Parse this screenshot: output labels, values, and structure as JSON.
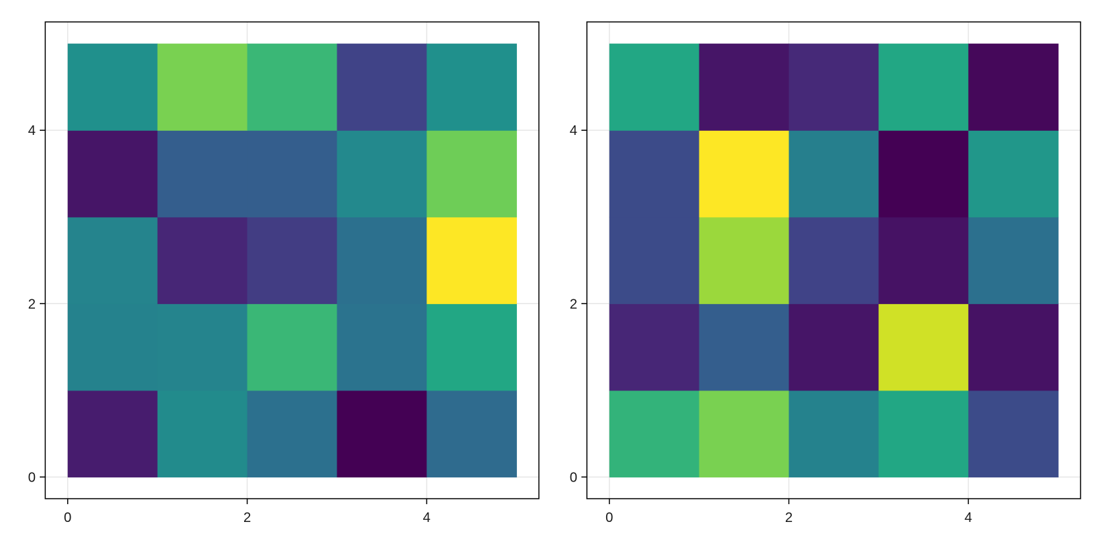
{
  "chart_data": [
    {
      "type": "heatmap",
      "title": "",
      "xlabel": "",
      "ylabel": "",
      "x_edges": [
        0,
        1,
        2,
        3,
        4,
        5
      ],
      "y_edges": [
        0,
        1,
        2,
        3,
        4,
        5
      ],
      "xlim": [
        -0.25,
        5.25
      ],
      "ylim": [
        -0.25,
        5.25
      ],
      "x_ticks": [
        0,
        2,
        4
      ],
      "y_ticks": [
        0,
        2,
        4
      ],
      "x_tick_labels": [
        "0",
        "2",
        "4"
      ],
      "y_tick_labels": [
        "0",
        "2",
        "4"
      ],
      "grid": true,
      "colormap": "viridis",
      "value_range": [
        0,
        1
      ],
      "rows_bottom_to_top": [
        [
          0.08,
          0.48,
          0.37,
          0.0,
          0.35
        ],
        [
          0.44,
          0.45,
          0.67,
          0.38,
          0.6
        ],
        [
          0.45,
          0.11,
          0.18,
          0.37,
          1.0
        ],
        [
          0.06,
          0.3,
          0.3,
          0.47,
          0.78
        ],
        [
          0.5,
          0.8,
          0.67,
          0.2,
          0.5
        ]
      ]
    },
    {
      "type": "heatmap",
      "title": "",
      "xlabel": "",
      "ylabel": "",
      "x_edges": [
        0,
        1,
        2,
        3,
        4,
        5
      ],
      "y_edges": [
        0,
        1,
        2,
        3,
        4,
        5
      ],
      "xlim": [
        -0.25,
        5.25
      ],
      "ylim": [
        -0.25,
        5.25
      ],
      "x_ticks": [
        0,
        2,
        4
      ],
      "y_ticks": [
        0,
        2,
        4
      ],
      "x_tick_labels": [
        "0",
        "2",
        "4"
      ],
      "y_tick_labels": [
        "0",
        "2",
        "4"
      ],
      "grid": true,
      "colormap": "viridis",
      "value_range": [
        0,
        1
      ],
      "rows_bottom_to_top": [
        [
          0.65,
          0.8,
          0.44,
          0.6,
          0.23
        ],
        [
          0.11,
          0.3,
          0.06,
          0.93,
          0.05
        ],
        [
          0.23,
          0.85,
          0.2,
          0.05,
          0.37
        ],
        [
          0.23,
          1.0,
          0.43,
          0.0,
          0.53
        ],
        [
          0.6,
          0.06,
          0.12,
          0.6,
          0.02
        ]
      ]
    }
  ],
  "colors": {
    "frame": "#000000",
    "grid": "#e6e6e6",
    "tick_text": "#1a1a1a",
    "background": "#ffffff"
  }
}
